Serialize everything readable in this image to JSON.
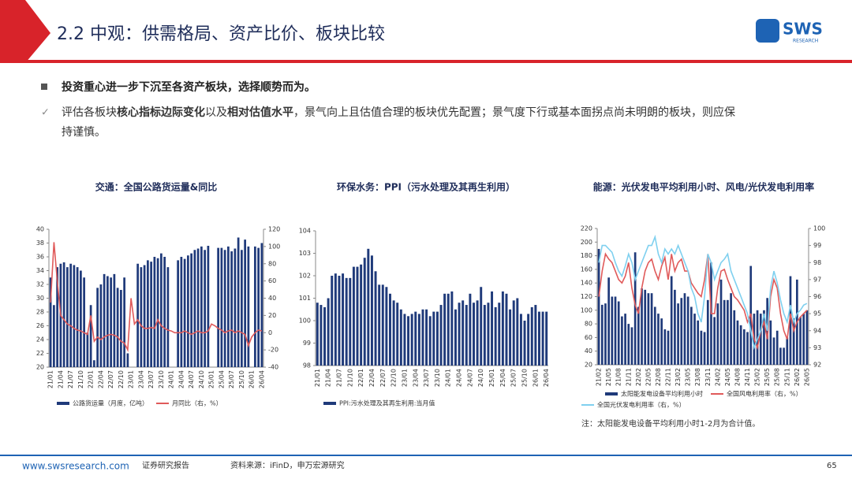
{
  "header": {
    "title": "2.2 中观：供需格局、资产比价、板块比较",
    "logo": "SWS",
    "logo_sub": "RESEARCH"
  },
  "bullets": {
    "main": "投资重心进一步下沉至各资产板块，选择顺势而为。",
    "sub_parts": [
      "评估各板块",
      "核心指标边际变化",
      "以及",
      "相对估值水平",
      "，景气向上且估值合理的板块优先配置；景气度下行或基本面拐点尚未明朗的板块，则应保持谨慎。"
    ]
  },
  "chart_data": [
    {
      "type": "combo",
      "title": "交通：全国公路货运量&同比",
      "categories": [
        "21/01",
        null,
        null,
        "21/04",
        null,
        null,
        "21/07",
        null,
        null,
        "21/10",
        null,
        null,
        "22/01",
        null,
        null,
        "22/04",
        null,
        null,
        "22/07",
        null,
        null,
        "22/10",
        null,
        null,
        "23/01",
        null,
        null,
        "23/04",
        null,
        null,
        "23/07",
        null,
        null,
        "23/10",
        null,
        null,
        "24/01",
        null,
        null,
        "24/04",
        null,
        null,
        "24/07",
        null,
        null,
        "24/10",
        null,
        null,
        "25/01",
        null,
        null,
        "25/04",
        null,
        null,
        "25/07",
        null,
        null,
        "25/10",
        null,
        null,
        "26/01",
        null,
        null,
        "26/04"
      ],
      "ylim": [
        20,
        40
      ],
      "yticks": [
        20,
        22,
        24,
        26,
        28,
        30,
        32,
        34,
        36,
        38,
        40
      ],
      "y2lim": [
        -40,
        120
      ],
      "y2ticks": [
        -40,
        -20,
        0,
        20,
        40,
        60,
        80,
        100,
        120
      ],
      "series": [
        {
          "name": "公路货运量（月度，亿吨）",
          "type": "bar",
          "color": "#1f3a7a",
          "values": [
            33,
            29,
            34.5,
            35,
            35.2,
            34.5,
            35,
            34.8,
            34.5,
            34,
            33,
            25,
            29,
            21,
            31.5,
            32,
            33.5,
            33.2,
            33,
            33.5,
            31.5,
            31.2,
            33,
            22,
            null,
            null,
            35,
            34.5,
            34.8,
            35.5,
            35.3,
            36,
            35.8,
            36.5,
            36,
            34.5,
            null,
            null,
            35.5,
            36,
            35.7,
            36.2,
            36.5,
            37,
            37.2,
            37.5,
            37,
            37.6,
            null,
            null,
            37.3,
            37.3,
            37,
            37.5,
            36.8,
            37.2,
            38.8,
            37,
            38.5,
            37.5,
            null,
            37.5,
            37.3,
            38
          ]
        },
        {
          "name": "月同比（右，%）",
          "type": "line",
          "axis": "y2",
          "color": "#e05a5a",
          "values": [
            35,
            105,
            60,
            20,
            15,
            10,
            8,
            5,
            3,
            2,
            0,
            -2,
            20,
            -10,
            -5,
            -8,
            -5,
            -3,
            -2,
            -3,
            -5,
            -10,
            -12,
            -20,
            40,
            10,
            15,
            8,
            5,
            5,
            6,
            5,
            15,
            8,
            5,
            3,
            2,
            0,
            0,
            0,
            2,
            0,
            -2,
            0,
            2,
            0,
            0,
            2,
            10,
            8,
            5,
            3,
            0,
            2,
            3,
            0,
            2,
            0,
            -2,
            -15,
            -5,
            0,
            3,
            2
          ]
        }
      ]
    },
    {
      "type": "bar",
      "title": "环保水务：PPI（污水处理及其再生利用）",
      "categories": [
        "21/01",
        null,
        null,
        "21/04",
        null,
        null,
        "21/07",
        null,
        null,
        "21/10",
        null,
        null,
        "22/01",
        null,
        null,
        "22/04",
        null,
        null,
        "22/07",
        null,
        null,
        "22/10",
        null,
        null,
        "23/01",
        null,
        null,
        "23/04",
        null,
        null,
        "23/07",
        null,
        null,
        "23/10",
        null,
        null,
        "24/01",
        null,
        null,
        "24/04",
        null,
        null,
        "24/07",
        null,
        null,
        "24/10",
        null,
        null,
        "25/01",
        null,
        null,
        "25/04",
        null,
        null,
        "25/07",
        null,
        null,
        "25/10",
        null,
        null,
        "26/01",
        null,
        null,
        "26/04"
      ],
      "ylim": [
        98,
        104
      ],
      "yticks": [
        98,
        99,
        100,
        101,
        102,
        103,
        104
      ],
      "series": [
        {
          "name": "PPI:污水处理及其再生利用:当月值",
          "type": "bar",
          "color": "#1f3a7a",
          "values": [
            100.8,
            100.7,
            100.6,
            101,
            102,
            102.1,
            102,
            102.1,
            101.9,
            101.9,
            102.4,
            102.4,
            102.5,
            102.8,
            103.2,
            102.9,
            102.2,
            101.6,
            101.6,
            101.5,
            101.2,
            100.9,
            100.8,
            100.5,
            100.3,
            100.2,
            100.3,
            100.4,
            100.3,
            100.5,
            100.5,
            100.2,
            100.4,
            100.4,
            100.7,
            101.2,
            101.2,
            101.3,
            100.5,
            100.8,
            100.9,
            100.7,
            101.2,
            100.8,
            100.9,
            101.5,
            100.7,
            100.8,
            101.3,
            100.6,
            100.8,
            101.3,
            101.2,
            100.5,
            100.9,
            101,
            100.3,
            100,
            100.3,
            100.6,
            100.7,
            100.4,
            100.4,
            100.4
          ]
        }
      ]
    },
    {
      "type": "combo",
      "title": "能源：光伏发电平均利用小时、风电/光伏发电利用率",
      "categories": [
        "21/02",
        null,
        null,
        "21/05",
        null,
        null,
        "21/08",
        null,
        null,
        "21/11",
        null,
        null,
        "22/02",
        null,
        null,
        "22/05",
        null,
        null,
        "22/08",
        null,
        null,
        "22/11",
        null,
        null,
        "23/02",
        null,
        null,
        "23/05",
        null,
        null,
        "23/08",
        null,
        null,
        "23/11",
        null,
        null,
        "24/02",
        null,
        null,
        "24/05",
        null,
        null,
        "24/08",
        null,
        null,
        "24/11",
        null,
        null,
        "25/02",
        null,
        null,
        "25/05",
        null,
        null,
        "25/08",
        null,
        null,
        "25/11",
        null,
        null,
        "26/02",
        null,
        null,
        "26/05"
      ],
      "ylim": [
        20,
        220
      ],
      "yticks": [
        20,
        40,
        60,
        80,
        100,
        120,
        140,
        160,
        180,
        200,
        220
      ],
      "y2lim": [
        92,
        100
      ],
      "y2ticks": [
        92,
        93,
        94,
        95,
        96,
        97,
        98,
        99,
        100
      ],
      "series": [
        {
          "name": "太阳能发电设备平均利用小时",
          "type": "bar",
          "color": "#1f3a7a",
          "values": [
            190,
            108,
            110,
            148,
            120,
            120,
            113,
            91,
            95,
            80,
            75,
            185,
            105,
            132,
            130,
            125,
            125,
            105,
            95,
            88,
            72,
            70,
            150,
            130,
            110,
            118,
            125,
            120,
            105,
            95,
            85,
            70,
            68,
            115,
            170,
            90,
            110,
            145,
            115,
            115,
            125,
            100,
            85,
            78,
            72,
            68,
            165,
            95,
            100,
            95,
            100,
            118,
            85,
            60,
            70,
            45,
            45,
            60,
            150,
            88,
            145,
            90,
            95,
            100
          ]
        },
        {
          "name": "全国风电利用率（右，%）",
          "type": "line",
          "axis": "y2",
          "color": "#e05a5a",
          "values": [
            96,
            97.5,
            98.5,
            98.2,
            98,
            97.5,
            97,
            96.8,
            97.2,
            98,
            96.5,
            95.5,
            95,
            96.5,
            97.5,
            98,
            98.2,
            97.5,
            97,
            97.8,
            98.3,
            97,
            98.5,
            97.5,
            98,
            98.2,
            97.5,
            97.5,
            96.8,
            96.5,
            96.2,
            96,
            97,
            98.5,
            95,
            95,
            96.5,
            97.5,
            97.6,
            97,
            96.5,
            96,
            95.8,
            95.5,
            95.2,
            94.5,
            95,
            93.5,
            93,
            94,
            94.5,
            93.5,
            96,
            97,
            96.5,
            95,
            94,
            93.5,
            95,
            94,
            94.5,
            94.8,
            95,
            95.2
          ]
        },
        {
          "name": "全国光伏发电利用率（右，%）",
          "type": "line",
          "axis": "y2",
          "color": "#7fd0ef",
          "values": [
            98,
            99,
            99,
            98.8,
            98.6,
            98,
            97.5,
            97.2,
            97.8,
            98.5,
            98,
            97,
            97.5,
            98,
            98.5,
            99,
            99,
            99.5,
            98.5,
            98,
            98.8,
            98.5,
            98.8,
            98.5,
            99,
            98.5,
            98,
            97.5,
            96.5,
            96,
            95,
            94.5,
            96,
            98.5,
            98,
            97,
            97.5,
            98,
            98.2,
            98.5,
            97.5,
            97,
            96.5,
            96,
            95.5,
            95,
            94,
            93,
            93.5,
            94,
            95,
            94,
            96.5,
            97.5,
            96.8,
            95.8,
            95,
            94.5,
            95.5,
            94.5,
            95,
            95.2,
            95.5,
            95.6
          ]
        }
      ],
      "note": "注：太阳能发电设备平均利用小时1-2月为合计值。"
    }
  ],
  "footer": {
    "site": "www.swsresearch.com",
    "kind": "证券研究报告",
    "source": "资料来源：iFinD，申万宏源研究",
    "page": "65"
  }
}
